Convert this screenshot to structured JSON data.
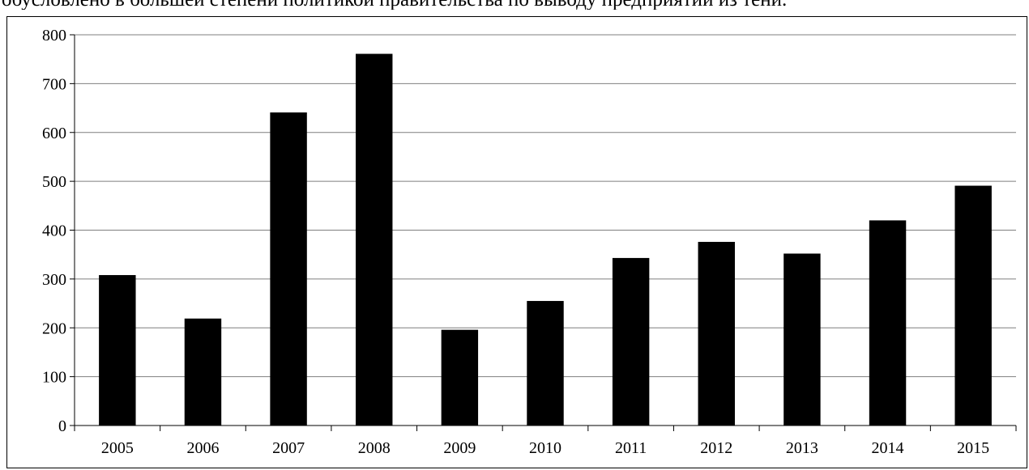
{
  "document": {
    "cut_text": "обусловлено в большей степени политикой правительства по выводу предприятий из тени."
  },
  "chart_data": {
    "type": "bar",
    "categories": [
      "2005",
      "2006",
      "2007",
      "2008",
      "2009",
      "2010",
      "2011",
      "2012",
      "2013",
      "2014",
      "2015"
    ],
    "values": [
      308,
      219,
      641,
      761,
      196,
      255,
      343,
      376,
      352,
      420,
      491
    ],
    "title": "",
    "xlabel": "",
    "ylabel": "",
    "ylim": [
      0,
      800
    ],
    "yticks": [
      "0",
      "100",
      "200",
      "300",
      "400",
      "500",
      "600",
      "700",
      "800"
    ],
    "grid": true,
    "legend": "none",
    "bar_color": "#000000",
    "gridline_color": "#7f7f7f"
  }
}
